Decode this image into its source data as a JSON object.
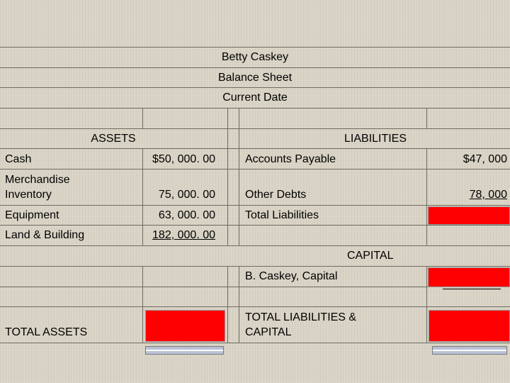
{
  "header": {
    "name": "Betty Caskey",
    "statement": "Balance Sheet",
    "date": "Current Date"
  },
  "assets": {
    "heading": "ASSETS",
    "items": [
      {
        "label": "Cash",
        "value": "$50, 000. 00"
      },
      {
        "label": "Merchandise",
        "label2": "Inventory",
        "value": "75, 000. 00"
      },
      {
        "label": "Equipment",
        "value": "63, 000. 00"
      },
      {
        "label": "Land & Building",
        "value": "182, 000. 00"
      }
    ],
    "total_label": "TOTAL ASSETS"
  },
  "liabilities": {
    "heading": "LIABILITIES",
    "items": [
      {
        "label": "Accounts Payable",
        "value": "$47, 000"
      },
      {
        "label": "Other Debts",
        "value": "78, 000"
      }
    ],
    "total_label": "Total Liabilities"
  },
  "capital": {
    "heading": "CAPITAL",
    "item_label": "B. Caskey, Capital",
    "total_label_line1": "TOTAL LIABILITIES &",
    "total_label_line2": "CAPITAL"
  },
  "colors": {
    "answer_box": "#ff0000",
    "background": "#d8d3c4",
    "grid": "#6e6a60"
  }
}
